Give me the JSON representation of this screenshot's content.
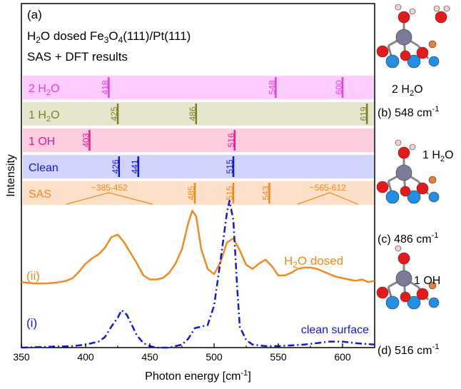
{
  "panel_label": "(a)",
  "title_lines": [
    "H2O dosed Fe3O4(111)/Pt(111)",
    "SAS + DFT results"
  ],
  "colors": {
    "orange": "#f28a1c",
    "blue": "#1515e0",
    "pink": "#ee1a8e",
    "olive": "#808020",
    "magenta": "#e040e0",
    "band_2h2o": "#ffccff",
    "band_1h2o": "#e6e6cc",
    "band_1oh": "#ffcce0",
    "band_clean": "#d0d4ff",
    "band_sas": "#ffe0c8"
  },
  "side_panels": [
    {
      "label_id": "(b)",
      "energy": "548 cm",
      "exp": "-1",
      "species": "2 H2O"
    },
    {
      "label_id": "(c)",
      "energy": "486 cm",
      "exp": "-1",
      "species": "1 H2O"
    },
    {
      "label_id": "(d)",
      "energy": "516 cm",
      "exp": "-1",
      "species": "1 OH"
    }
  ],
  "chart_data": {
    "type": "line",
    "xlabel": "Photon energy [cm-1]",
    "ylabel": "Intensity",
    "xlim": [
      350,
      625
    ],
    "x_ticks": [
      350,
      400,
      450,
      500,
      550,
      600
    ],
    "grid": false,
    "bands": [
      {
        "name": "2 H2O",
        "color_key": "magenta",
        "band_key": "band_2h2o",
        "lines": [
          418,
          548,
          600
        ]
      },
      {
        "name": "1 H2O",
        "color_key": "olive",
        "band_key": "band_1h2o",
        "lines": [
          425,
          486,
          619
        ]
      },
      {
        "name": "1 OH",
        "color_key": "pink",
        "band_key": "band_1oh",
        "lines": [
          403,
          516
        ]
      },
      {
        "name": "Clean",
        "color_key": "blue",
        "band_key": "band_clean",
        "lines": [
          426,
          441,
          515
        ]
      },
      {
        "name": "SAS",
        "color_key": "orange",
        "band_key": "band_sas",
        "lines": [
          485,
          515,
          543
        ],
        "ranges": [
          {
            "label": "~385-452",
            "from": 385,
            "to": 452,
            "peak": 418
          },
          {
            "label": "~565-612",
            "from": 565,
            "to": 612,
            "peak": 590
          }
        ]
      }
    ],
    "series": [
      {
        "name": "H2O dosed",
        "tag": "(ii)",
        "color_key": "orange",
        "style": "solid",
        "x": [
          350,
          360,
          370,
          380,
          385,
          390,
          395,
          400,
          405,
          410,
          415,
          420,
          425,
          430,
          435,
          440,
          445,
          450,
          455,
          460,
          465,
          470,
          475,
          480,
          483,
          486,
          490,
          495,
          500,
          505,
          510,
          515,
          520,
          525,
          530,
          535,
          540,
          545,
          550,
          555,
          560,
          565,
          570,
          575,
          580,
          585,
          590,
          595,
          600,
          605,
          610,
          615,
          620,
          625
        ],
        "y": [
          0.08,
          0.07,
          0.07,
          0.08,
          0.09,
          0.11,
          0.16,
          0.22,
          0.26,
          0.29,
          0.34,
          0.42,
          0.44,
          0.38,
          0.3,
          0.22,
          0.13,
          0.1,
          0.1,
          0.11,
          0.15,
          0.22,
          0.33,
          0.53,
          0.62,
          0.58,
          0.33,
          0.18,
          0.14,
          0.23,
          0.38,
          0.41,
          0.32,
          0.21,
          0.18,
          0.22,
          0.25,
          0.2,
          0.13,
          0.13,
          0.15,
          0.18,
          0.19,
          0.19,
          0.18,
          0.16,
          0.14,
          0.12,
          0.11,
          0.1,
          0.09,
          0.1,
          0.08,
          0.09
        ]
      },
      {
        "name": "clean surface",
        "tag": "(i)",
        "color_key": "blue",
        "style": "dashdot",
        "x": [
          350,
          370,
          390,
          400,
          410,
          415,
          420,
          425,
          428,
          432,
          436,
          440,
          445,
          450,
          455,
          460,
          465,
          470,
          475,
          480,
          485,
          490,
          495,
          500,
          505,
          510,
          512,
          515,
          518,
          520,
          525,
          530,
          540,
          550,
          560,
          570,
          580,
          590,
          600,
          610,
          625
        ],
        "y": [
          0.0,
          0.005,
          0.01,
          0.02,
          0.04,
          0.07,
          0.14,
          0.2,
          0.25,
          0.22,
          0.15,
          0.08,
          0.03,
          0.01,
          0.0,
          0.0,
          0.0,
          0.01,
          0.02,
          0.06,
          0.13,
          0.14,
          0.15,
          0.28,
          0.58,
          0.9,
          0.98,
          0.85,
          0.4,
          0.14,
          0.05,
          0.02,
          0.01,
          0.01,
          0.015,
          0.02,
          0.03,
          0.04,
          0.04,
          0.03,
          0.02
        ]
      }
    ]
  }
}
